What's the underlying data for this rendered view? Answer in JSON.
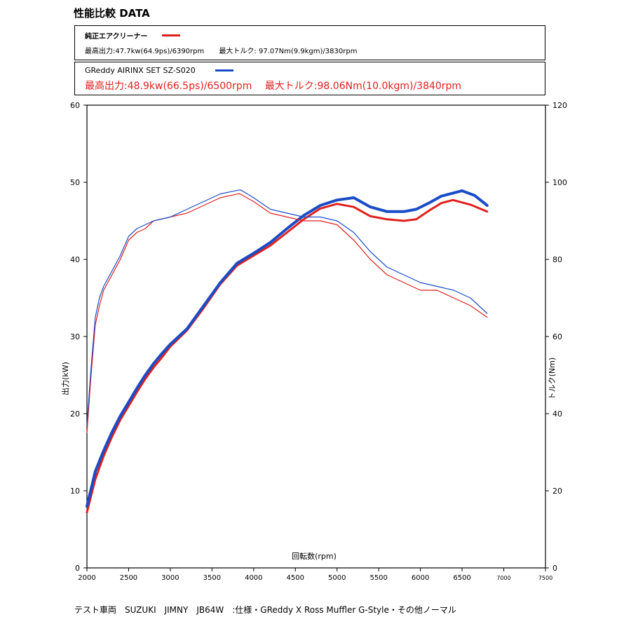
{
  "title": "性能比較 DATA",
  "legend": {
    "stock": {
      "name": "純正エアクリーナー",
      "color": "#e0201e",
      "max_power": "最高出力:47.7kw(64.9ps)/6390rpm",
      "max_torque": "最大トルク: 97.07Nm(9.9kgm)/3830rpm"
    },
    "greddy": {
      "name": "GReddy AIRINX SET SZ-S020",
      "color": "#1a4cc7",
      "max_power": "最高出力:48.9kw(66.5ps)/6500rpm",
      "max_torque": "最大トルク:98.06Nm(10.0kgm)/3840rpm",
      "spec_color": "#e0201e"
    }
  },
  "footer": "テスト車両　SUZUKI　JIMNY　JB64W　:仕様・GReddy X Ross Muffler G-Style・その他ノーマル",
  "chart_data": {
    "type": "line",
    "xlabel": "回転数(rpm)",
    "ylabel_left": "出力(kW)",
    "ylabel_right": "トルク(Nm)",
    "xlim": [
      2000,
      7500
    ],
    "ylim_left": [
      0,
      60
    ],
    "ylim_right": [
      0,
      120
    ],
    "xticks": [
      "2000",
      "2500",
      "3000",
      "3500",
      "4000",
      "4500",
      "5000",
      "5500",
      "6000",
      "6500",
      "7000",
      "7500"
    ],
    "yticks_left": [
      "0",
      "10",
      "20",
      "30",
      "40",
      "50",
      "60"
    ],
    "yticks_right": [
      "0",
      "20",
      "40",
      "60",
      "80",
      "100",
      "120"
    ],
    "series": [
      {
        "name": "純正エアクリーナー 出力",
        "axis": "left",
        "color": "#e0201e",
        "width": 3,
        "x": [
          2000,
          2100,
          2200,
          2300,
          2400,
          2500,
          2600,
          2700,
          2800,
          2900,
          3000,
          3200,
          3400,
          3600,
          3800,
          4000,
          4200,
          4400,
          4600,
          4800,
          5000,
          5200,
          5400,
          5600,
          5800,
          5950,
          6100,
          6250,
          6390,
          6600,
          6800
        ],
        "y": [
          7.2,
          11.5,
          14.5,
          17.0,
          19.2,
          21.0,
          22.8,
          24.5,
          26.0,
          27.3,
          28.7,
          30.8,
          33.7,
          36.8,
          39.2,
          40.5,
          41.8,
          43.5,
          45.2,
          46.6,
          47.2,
          46.8,
          45.6,
          45.2,
          45.0,
          45.2,
          46.3,
          47.3,
          47.7,
          47.1,
          46.2
        ]
      },
      {
        "name": "GReddy AIRINX SET 出力",
        "axis": "left",
        "color": "#1a4cc7",
        "width": 4,
        "x": [
          2000,
          2100,
          2200,
          2300,
          2400,
          2500,
          2600,
          2700,
          2800,
          2900,
          3000,
          3200,
          3400,
          3600,
          3800,
          4000,
          4200,
          4400,
          4600,
          4800,
          5000,
          5200,
          5400,
          5600,
          5800,
          5950,
          6100,
          6250,
          6500,
          6650,
          6800
        ],
        "y": [
          8.0,
          12.5,
          15.2,
          17.6,
          19.7,
          21.5,
          23.3,
          25.0,
          26.5,
          27.8,
          29.0,
          31.0,
          34.0,
          37.0,
          39.5,
          40.8,
          42.2,
          44.0,
          45.7,
          47.0,
          47.7,
          48.0,
          46.8,
          46.2,
          46.2,
          46.5,
          47.3,
          48.2,
          48.9,
          48.3,
          47.0
        ]
      },
      {
        "name": "純正エアクリーナー トルク",
        "axis": "right",
        "color": "#e0201e",
        "width": 1.2,
        "x": [
          2000,
          2050,
          2100,
          2150,
          2200,
          2300,
          2400,
          2500,
          2600,
          2700,
          2800,
          3000,
          3200,
          3400,
          3600,
          3830,
          4000,
          4200,
          4400,
          4600,
          4800,
          5000,
          5200,
          5400,
          5600,
          5800,
          6000,
          6200,
          6400,
          6600,
          6800
        ],
        "y": [
          35,
          50,
          63,
          68,
          72,
          76,
          80,
          85,
          87,
          88,
          90,
          91,
          92,
          94,
          96,
          97.07,
          95,
          92,
          91,
          90,
          90,
          89,
          85,
          80,
          76,
          74,
          72,
          72,
          70,
          68,
          65
        ]
      },
      {
        "name": "GReddy AIRINX SET トルク",
        "axis": "right",
        "color": "#1a4cc7",
        "width": 1.2,
        "x": [
          2000,
          2050,
          2100,
          2150,
          2200,
          2300,
          2400,
          2500,
          2600,
          2700,
          2800,
          3000,
          3200,
          3400,
          3600,
          3840,
          4000,
          4200,
          4400,
          4600,
          4800,
          5000,
          5200,
          5400,
          5600,
          5800,
          6000,
          6200,
          6400,
          6600,
          6800
        ],
        "y": [
          37,
          52,
          65,
          70,
          73,
          77,
          81,
          86,
          88,
          89,
          90,
          91,
          93,
          95,
          97,
          98.06,
          96,
          93,
          92,
          91,
          91,
          90,
          87,
          82,
          78,
          76,
          74,
          73,
          72,
          70,
          66
        ]
      }
    ]
  }
}
